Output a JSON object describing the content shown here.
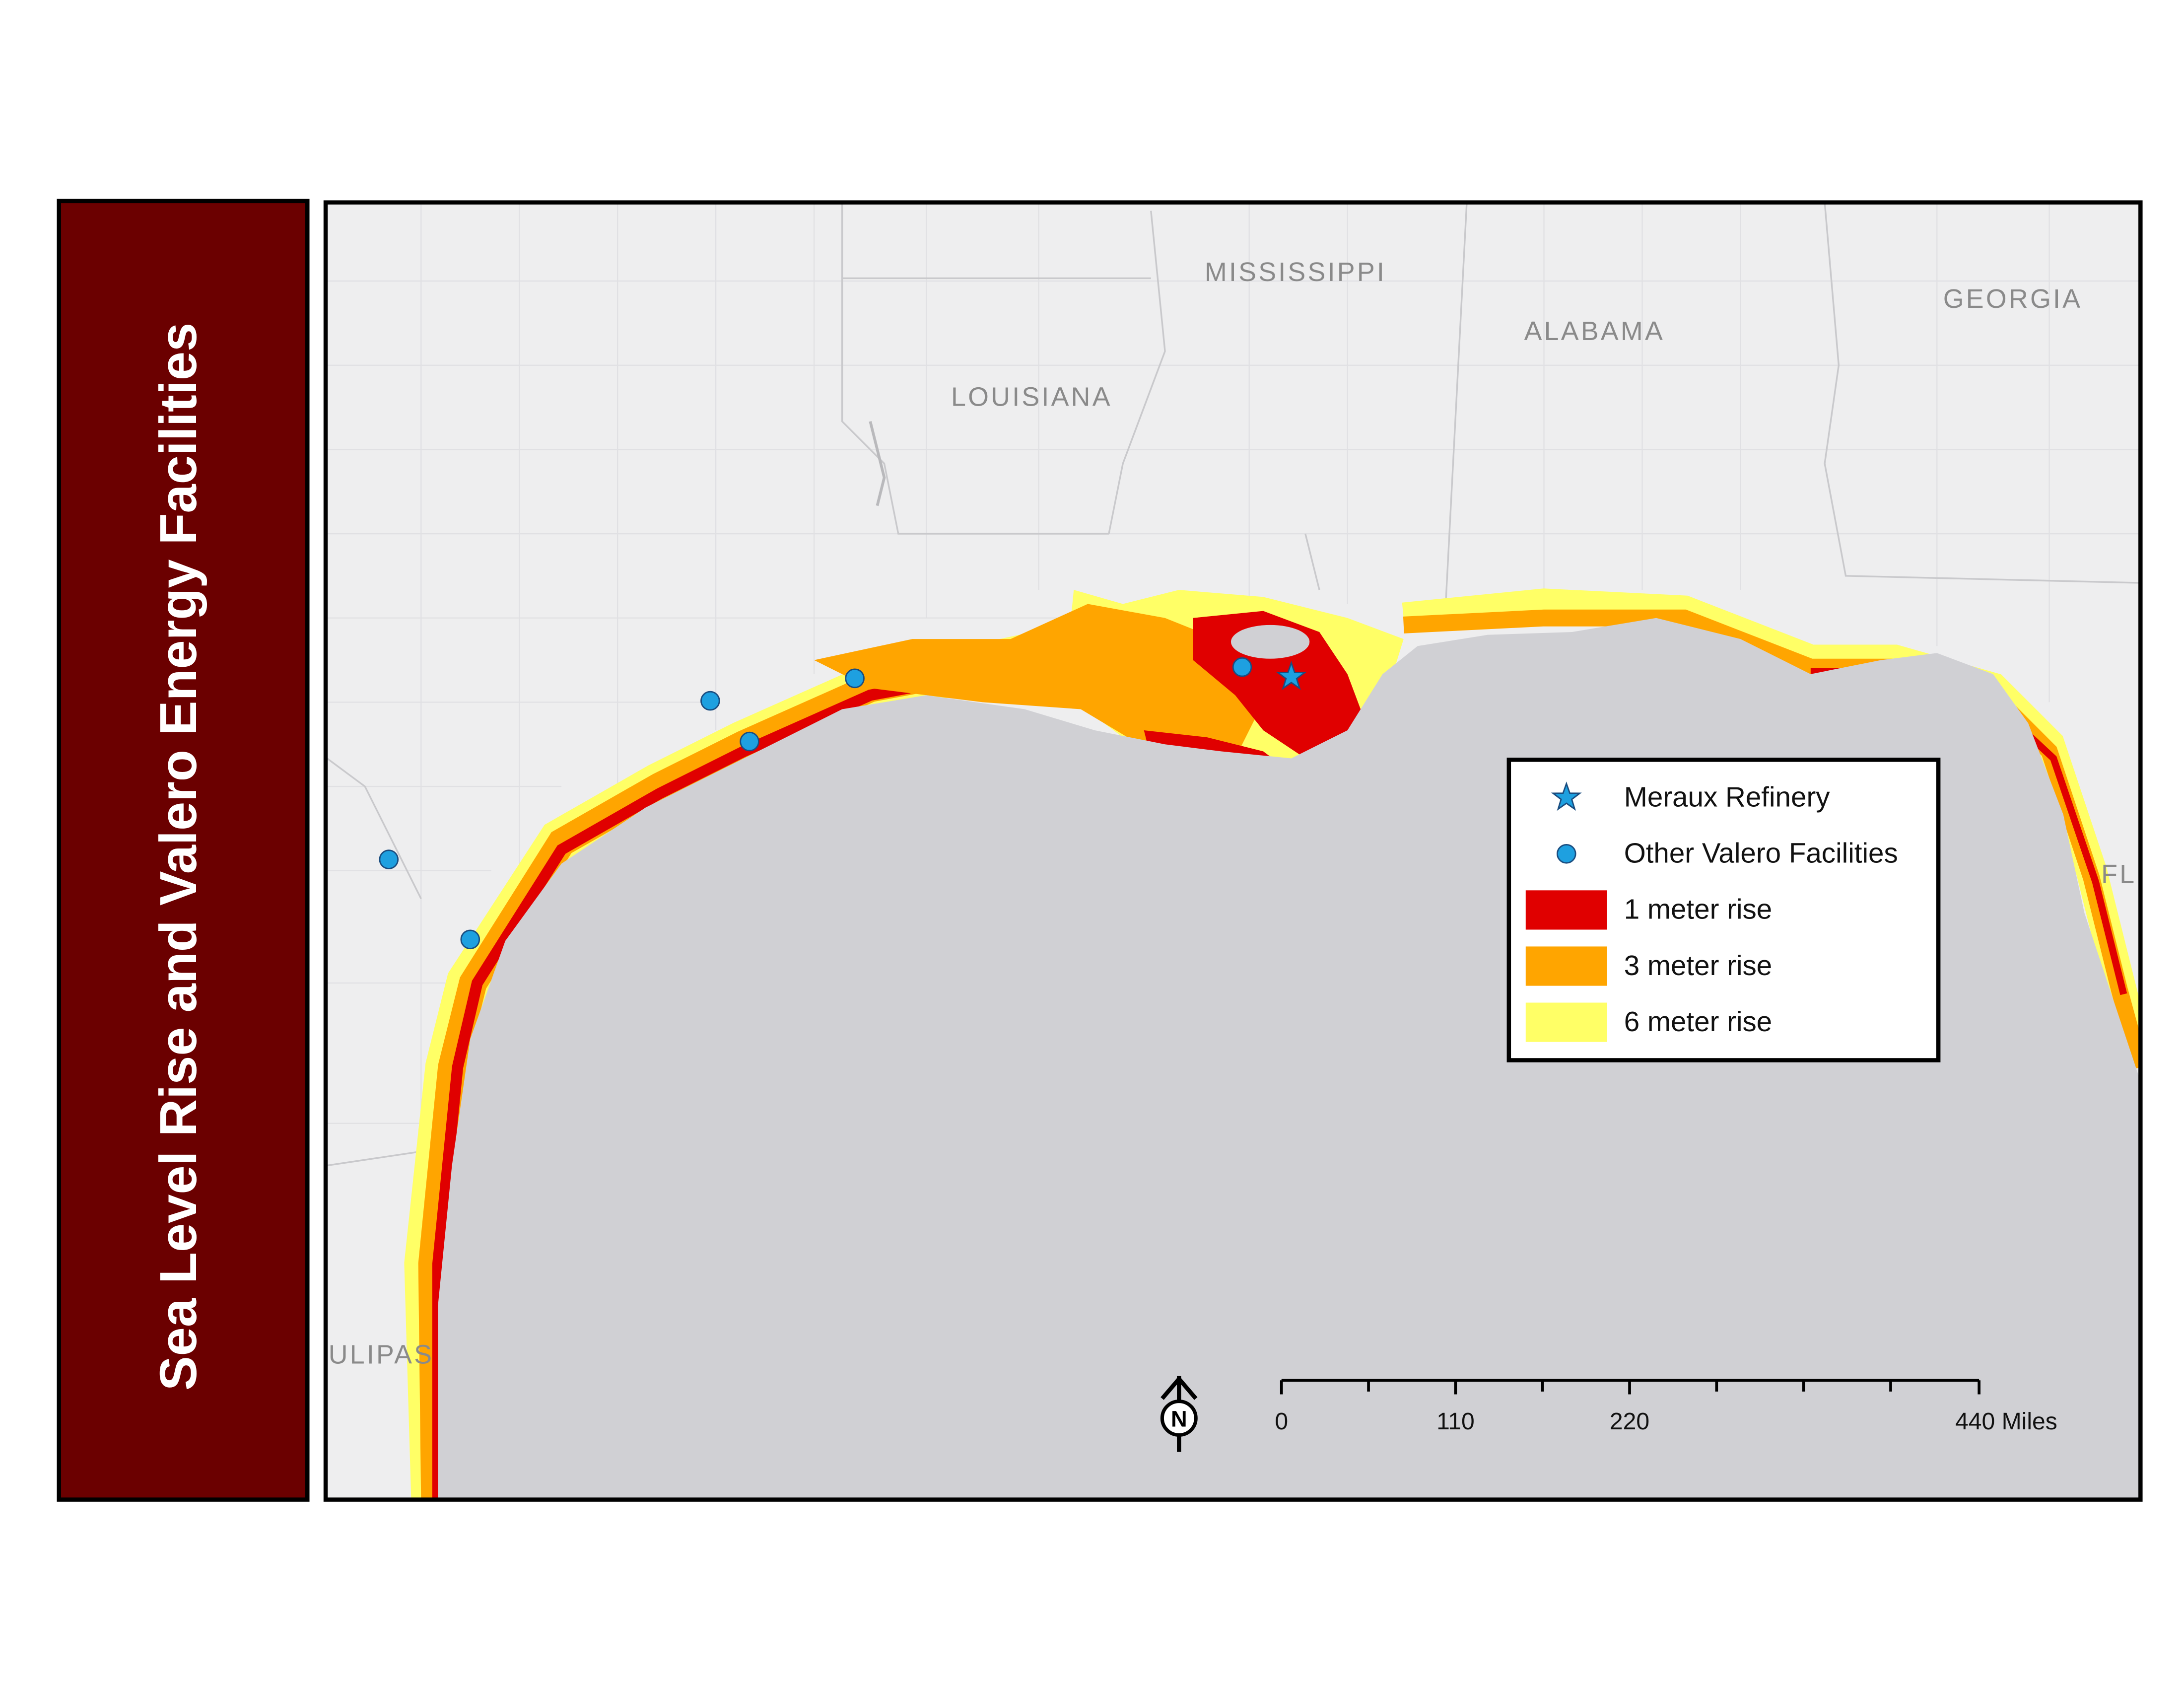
{
  "title": "Sea Level Rise and Valero Energy Facilities",
  "map": {
    "labels": [
      "MISSISSIPPI",
      "ALABAMA",
      "GEORGIA",
      "LOUISIANA",
      "FL",
      "ULIPAS"
    ]
  },
  "legend": {
    "items": [
      "Meraux Refinery",
      "Other Valero Facilities",
      "1 meter rise",
      "3 meter rise",
      "6 meter rise"
    ]
  },
  "north_arrow": "N",
  "scale_bar": {
    "ticks": [
      "0",
      "110",
      "220"
    ],
    "end_label": "440 Miles"
  }
}
